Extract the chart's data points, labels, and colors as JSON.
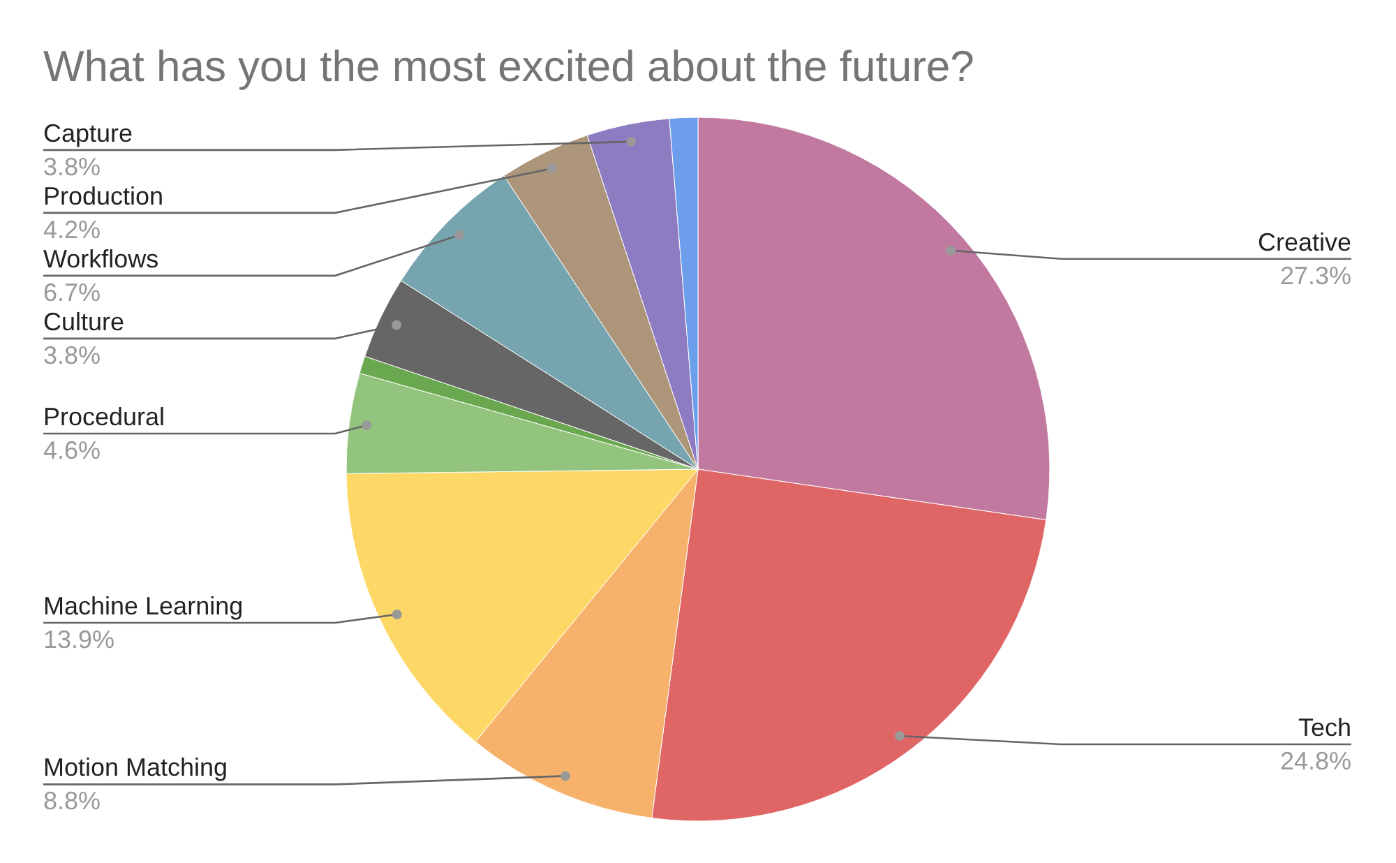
{
  "chart_data": {
    "type": "pie",
    "title": "What has you the most excited about the future?",
    "categories": [
      "Creative",
      "Tech",
      "Motion Matching",
      "Machine Learning",
      "Procedural",
      null,
      "Culture",
      "Workflows",
      "Production",
      "Capture",
      null
    ],
    "values": [
      27.3,
      24.8,
      8.8,
      13.9,
      4.6,
      0.8,
      3.8,
      6.7,
      4.2,
      3.8,
      1.3
    ],
    "value_labels": [
      "27.3%",
      "24.8%",
      "8.8%",
      "13.9%",
      "4.6%",
      null,
      "3.8%",
      "6.7%",
      "4.2%",
      "3.8%",
      null
    ],
    "colors": [
      "#c2799f",
      "#e06666",
      "#f6b26b",
      "#fdd866",
      "#93c47d",
      "#6aa84f",
      "#666666",
      "#76a5af",
      "#ad957a",
      "#8e7cc3",
      "#6d9eeb"
    ]
  }
}
